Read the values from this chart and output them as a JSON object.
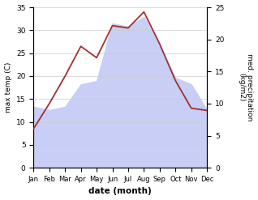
{
  "months": [
    "Jan",
    "Feb",
    "Mar",
    "Apr",
    "May",
    "Jun",
    "Jul",
    "Aug",
    "Sep",
    "Oct",
    "Nov",
    "Dec"
  ],
  "temp": [
    8.5,
    14.0,
    20.0,
    26.5,
    24.0,
    31.0,
    30.5,
    34.0,
    27.0,
    19.0,
    13.0,
    12.5
  ],
  "precip": [
    9.5,
    9.0,
    9.5,
    13.0,
    13.5,
    22.5,
    22.0,
    23.5,
    19.0,
    14.0,
    13.0,
    9.0
  ],
  "temp_color": "#a03030",
  "precip_fill_color": "#c8cef5",
  "precip_line_color": "#c8cef5",
  "temp_ylim": [
    0,
    35
  ],
  "precip_ylim": [
    0,
    25
  ],
  "temp_yticks": [
    0,
    5,
    10,
    15,
    20,
    25,
    30,
    35
  ],
  "precip_yticks": [
    0,
    5,
    10,
    15,
    20,
    25
  ],
  "xlabel": "date (month)",
  "ylabel_left": "max temp (C)",
  "ylabel_right": "med. precipitation\n(kg/m2)",
  "bg_color": "#ffffff",
  "grid_color": "#cccccc"
}
